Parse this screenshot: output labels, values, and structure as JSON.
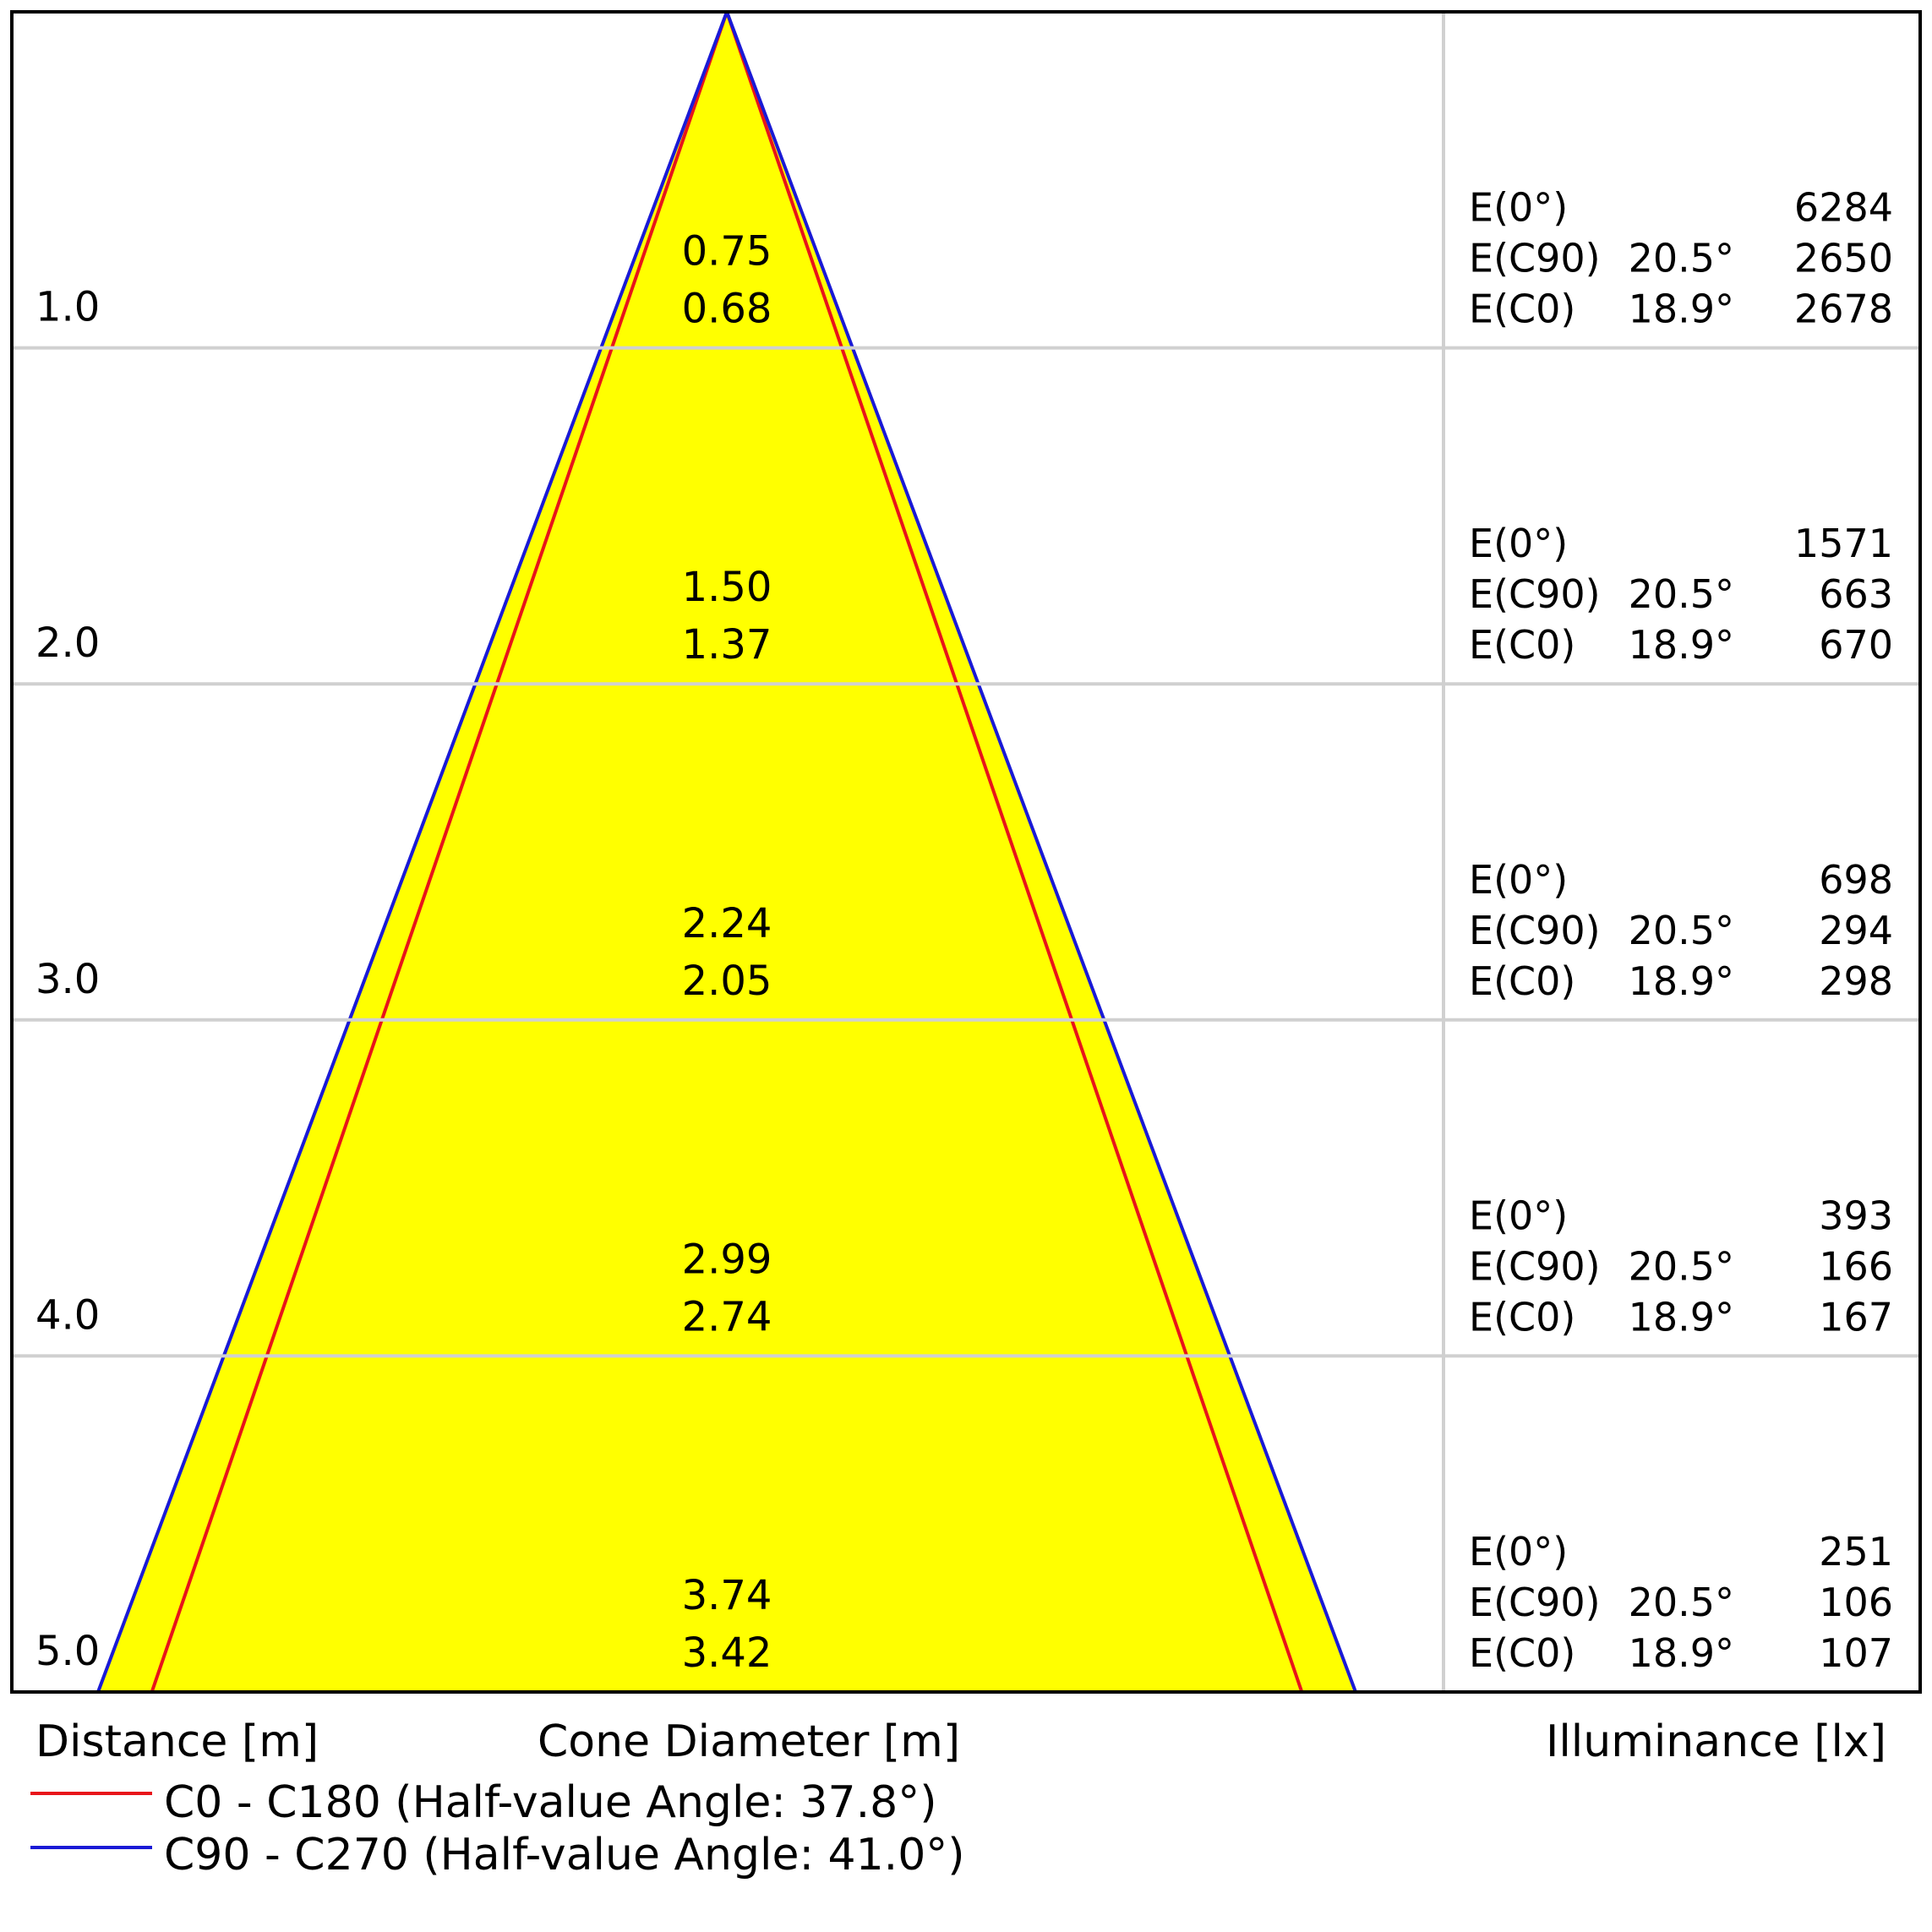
{
  "chart_data": {
    "type": "cone diagram",
    "colors": {
      "cone_fill": "#ffff00",
      "c0_line": "#e8141a",
      "c90_line": "#1a1ad6",
      "grid": "#d0d0d0",
      "frame": "#000000"
    },
    "rows": [
      {
        "distance": "1.0",
        "d_c90": "0.75",
        "d_c0": "0.68",
        "table": [
          {
            "label": "E(0°)",
            "angle": "",
            "value": "6284"
          },
          {
            "label": "E(C90)",
            "angle": "20.5°",
            "value": "2650"
          },
          {
            "label": "E(C0)",
            "angle": "18.9°",
            "value": "2678"
          }
        ]
      },
      {
        "distance": "2.0",
        "d_c90": "1.50",
        "d_c0": "1.37",
        "table": [
          {
            "label": "E(0°)",
            "angle": "",
            "value": "1571"
          },
          {
            "label": "E(C90)",
            "angle": "20.5°",
            "value": "663"
          },
          {
            "label": "E(C0)",
            "angle": "18.9°",
            "value": "670"
          }
        ]
      },
      {
        "distance": "3.0",
        "d_c90": "2.24",
        "d_c0": "2.05",
        "table": [
          {
            "label": "E(0°)",
            "angle": "",
            "value": "698"
          },
          {
            "label": "E(C90)",
            "angle": "20.5°",
            "value": "294"
          },
          {
            "label": "E(C0)",
            "angle": "18.9°",
            "value": "298"
          }
        ]
      },
      {
        "distance": "4.0",
        "d_c90": "2.99",
        "d_c0": "2.74",
        "table": [
          {
            "label": "E(0°)",
            "angle": "",
            "value": "393"
          },
          {
            "label": "E(C90)",
            "angle": "20.5°",
            "value": "166"
          },
          {
            "label": "E(C0)",
            "angle": "18.9°",
            "value": "167"
          }
        ]
      },
      {
        "distance": "5.0",
        "d_c90": "3.74",
        "d_c0": "3.42",
        "table": [
          {
            "label": "E(0°)",
            "angle": "",
            "value": "251"
          },
          {
            "label": "E(C90)",
            "angle": "20.5°",
            "value": "106"
          },
          {
            "label": "E(C0)",
            "angle": "18.9°",
            "value": "107"
          }
        ]
      }
    ],
    "max_distance": 5.0,
    "cone_half_diameter_max": 1.87,
    "c0_half_diameter_max": 1.71,
    "xlabel_distance": "Distance [m]",
    "xlabel_cone": "Cone Diameter [m]",
    "xlabel_illuminance": "Illuminance [lx]",
    "legend": [
      {
        "key": "c0",
        "text": "C0 - C180 (Half-value Angle: 37.8°)"
      },
      {
        "key": "c90",
        "text": "C90 - C270 (Half-value Angle: 41.0°)"
      }
    ]
  }
}
